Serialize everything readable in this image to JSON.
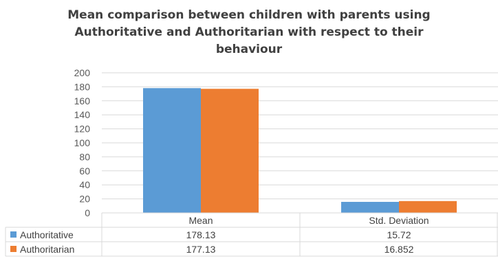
{
  "chart_data": {
    "type": "bar",
    "title_lines": [
      "Mean comparison between children with  parents using",
      "Authoritative and Authoritarian with respect to their",
      "behaviour"
    ],
    "categories": [
      "Mean",
      "Std. Deviation"
    ],
    "series": [
      {
        "name": "Authoritative",
        "values": [
          178.13,
          15.72
        ],
        "value_labels": [
          "178.13",
          "15.72"
        ],
        "color": "#5b9bd5"
      },
      {
        "name": "Authoritarian",
        "values": [
          177.13,
          16.852
        ],
        "value_labels": [
          "177.13",
          "16.852"
        ],
        "color": "#ed7d31"
      }
    ],
    "ylim": [
      0,
      200
    ],
    "yticks": [
      0,
      20,
      40,
      60,
      80,
      100,
      120,
      140,
      160,
      180,
      200
    ],
    "grid": true,
    "legend": "data table below chart"
  }
}
